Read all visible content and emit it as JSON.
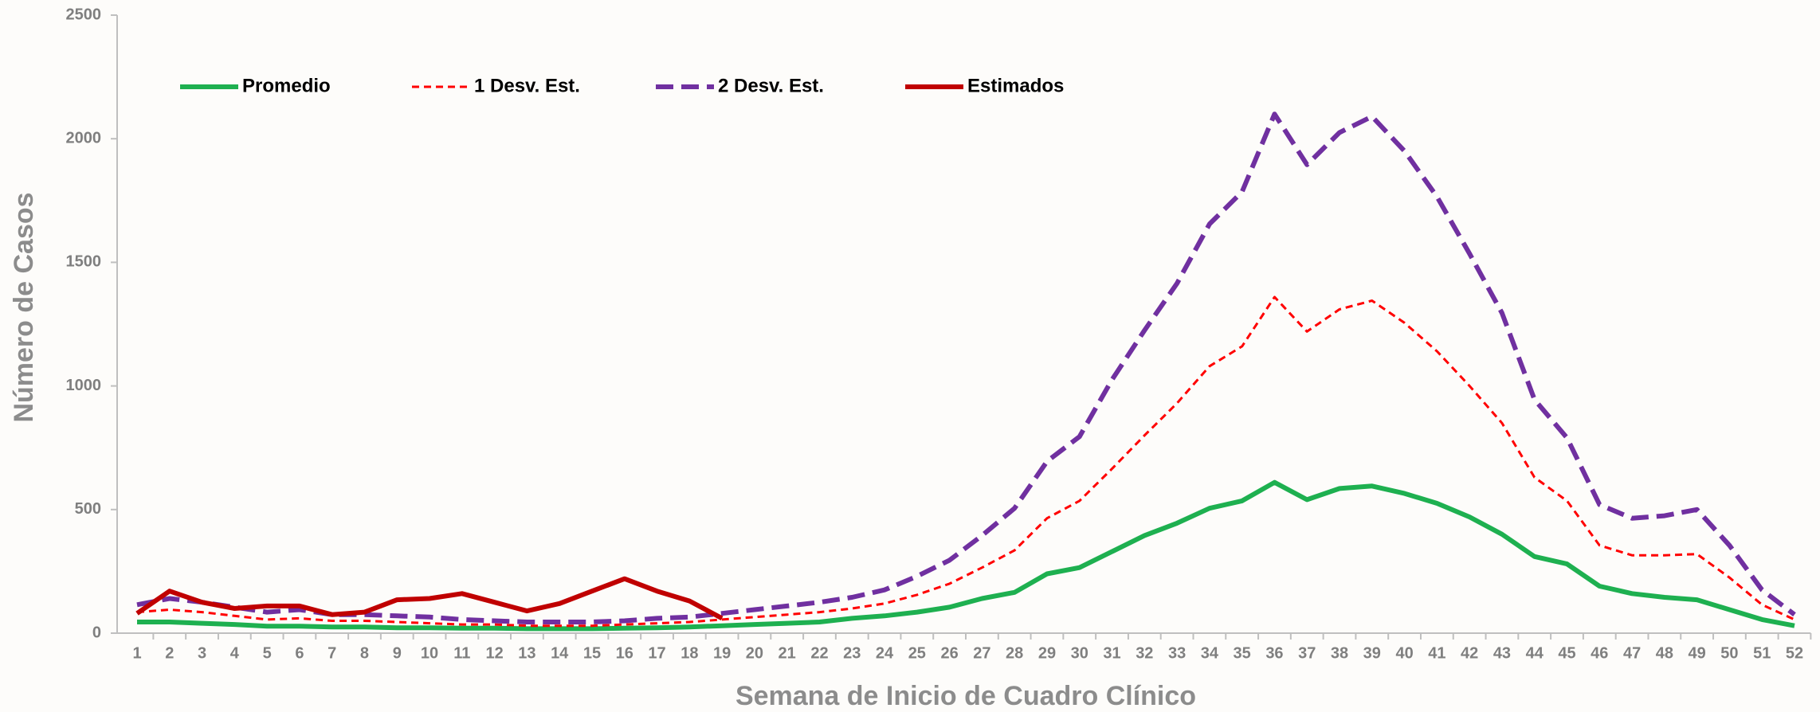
{
  "chart_data": {
    "type": "line",
    "x_label": "Semana de Inicio de Cuadro Clínico",
    "y_label": "Número de Casos",
    "categories": [
      "1",
      "2",
      "3",
      "4",
      "5",
      "6",
      "7",
      "8",
      "9",
      "10",
      "11",
      "12",
      "13",
      "14",
      "15",
      "16",
      "17",
      "18",
      "19",
      "20",
      "21",
      "22",
      "23",
      "24",
      "25",
      "26",
      "27",
      "28",
      "29",
      "30",
      "31",
      "32",
      "33",
      "34",
      "35",
      "36",
      "37",
      "38",
      "39",
      "40",
      "41",
      "42",
      "43",
      "44",
      "45",
      "46",
      "47",
      "48",
      "49",
      "50",
      "51",
      "52"
    ],
    "ylim": [
      0,
      2500
    ],
    "yticks": [
      0,
      500,
      1000,
      1500,
      2000,
      2500
    ],
    "series": [
      {
        "name": "Promedio",
        "color": "#1eb050",
        "values": [
          45,
          45,
          40,
          35,
          28,
          28,
          25,
          25,
          22,
          22,
          20,
          20,
          18,
          18,
          18,
          20,
          22,
          25,
          30,
          35,
          40,
          45,
          60,
          70,
          85,
          105,
          140,
          165,
          240,
          265,
          330,
          395,
          445,
          505,
          535,
          610,
          540,
          585,
          595,
          565,
          525,
          470,
          400,
          310,
          280,
          190,
          160,
          145,
          135,
          95,
          55,
          30
        ]
      },
      {
        "name": "1 Desv. Est.",
        "color": "#ff0000",
        "values": [
          85,
          95,
          85,
          70,
          55,
          60,
          50,
          50,
          45,
          40,
          35,
          35,
          30,
          30,
          30,
          35,
          40,
          45,
          55,
          65,
          75,
          85,
          100,
          120,
          155,
          200,
          265,
          335,
          465,
          535,
          665,
          800,
          930,
          1080,
          1160,
          1360,
          1220,
          1310,
          1345,
          1255,
          1140,
          1000,
          850,
          630,
          535,
          355,
          315,
          315,
          320,
          225,
          115,
          55
        ]
      },
      {
        "name": "2 Desv. Est.",
        "color": "#7030a0",
        "values": [
          115,
          140,
          125,
          105,
          85,
          95,
          75,
          75,
          70,
          65,
          55,
          50,
          45,
          45,
          45,
          50,
          60,
          65,
          80,
          95,
          110,
          125,
          145,
          175,
          230,
          295,
          395,
          505,
          695,
          795,
          1025,
          1225,
          1415,
          1655,
          1785,
          2100,
          1895,
          2025,
          2090,
          1950,
          1765,
          1535,
          1295,
          945,
          790,
          520,
          465,
          475,
          500,
          355,
          175,
          75
        ]
      },
      {
        "name": "Estimados",
        "color": "#c00000",
        "values": [
          80,
          170,
          125,
          100,
          110,
          110,
          75,
          85,
          135,
          140,
          160,
          125,
          90,
          120,
          170,
          220,
          170,
          130,
          60,
          null,
          null,
          null,
          null,
          null,
          null,
          null,
          null,
          null,
          null,
          null,
          null,
          null,
          null,
          null,
          null,
          null,
          null,
          null,
          null,
          null,
          null,
          null,
          null,
          null,
          null,
          null,
          null,
          null,
          null,
          null,
          null,
          null
        ]
      }
    ]
  }
}
